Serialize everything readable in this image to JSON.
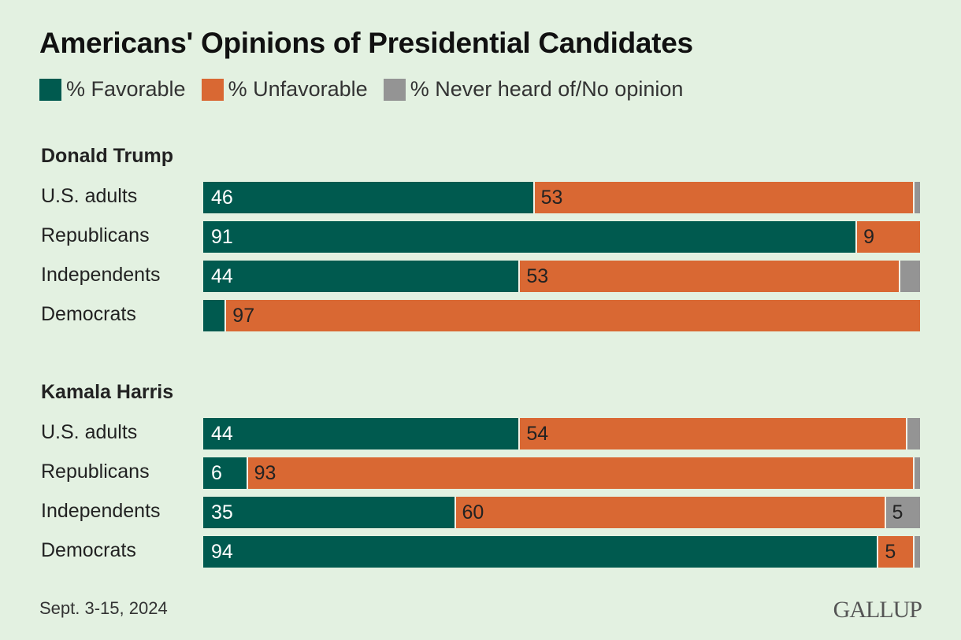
{
  "chart_data": {
    "type": "bar",
    "orientation": "horizontal-stacked",
    "title": "Americans' Opinions of Presidential Candidates",
    "legend": [
      {
        "name": "% Favorable",
        "color": "#005a4f"
      },
      {
        "name": "% Unfavorable",
        "color": "#d96833"
      },
      {
        "name": "% Never heard of/No opinion",
        "color": "#949494"
      }
    ],
    "legend_position": "top-left",
    "xlim": [
      0,
      100
    ],
    "groups": [
      {
        "name": "Donald Trump",
        "rows": [
          {
            "label": "U.S. adults",
            "values": [
              46,
              53,
              1
            ],
            "labels": [
              "46",
              "53",
              ""
            ]
          },
          {
            "label": "Republicans",
            "values": [
              91,
              9,
              0
            ],
            "labels": [
              "91",
              "9",
              ""
            ]
          },
          {
            "label": "Independents",
            "values": [
              44,
              53,
              3
            ],
            "labels": [
              "44",
              "53",
              ""
            ]
          },
          {
            "label": "Democrats",
            "values": [
              3,
              97,
              0
            ],
            "labels": [
              "",
              "97",
              ""
            ]
          }
        ]
      },
      {
        "name": "Kamala Harris",
        "rows": [
          {
            "label": "U.S. adults",
            "values": [
              44,
              54,
              2
            ],
            "labels": [
              "44",
              "54",
              ""
            ]
          },
          {
            "label": "Republicans",
            "values": [
              6,
              93,
              1
            ],
            "labels": [
              "6",
              "93",
              ""
            ]
          },
          {
            "label": "Independents",
            "values": [
              35,
              60,
              5
            ],
            "labels": [
              "35",
              "60",
              "5"
            ]
          },
          {
            "label": "Democrats",
            "values": [
              94,
              5,
              1
            ],
            "labels": [
              "94",
              "5",
              ""
            ]
          }
        ]
      }
    ],
    "footnote": "Sept. 3-15, 2024",
    "source": "GALLUP"
  }
}
